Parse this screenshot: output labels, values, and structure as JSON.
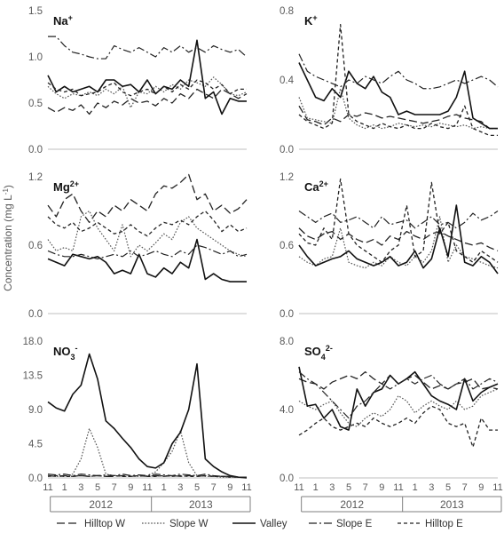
{
  "ylabel": "Concentration (mg L",
  "ylabel_sup": "-1",
  "ylabel_end": ")",
  "month_ticks": [
    "11",
    "1",
    "3",
    "5",
    "7",
    "9",
    "11",
    "1",
    "3",
    "5",
    "7",
    "9",
    "11"
  ],
  "years": [
    "2012",
    "2013"
  ],
  "legend_items": [
    {
      "label": "Hilltop W",
      "dash": "9,4",
      "width": 1.3,
      "color": "#222222"
    },
    {
      "label": "Slope W",
      "dash": "1.6,1.8",
      "width": 1.2,
      "color": "#555555"
    },
    {
      "label": "Valley",
      "dash": "",
      "width": 1.6,
      "color": "#111111"
    },
    {
      "label": "Slope E",
      "dash": "9,3,2,3",
      "width": 1.2,
      "color": "#222222"
    },
    {
      "label": "Hilltop E",
      "dash": "4,3",
      "width": 1.3,
      "color": "#222222"
    }
  ],
  "chart_data": [
    {
      "type": "line",
      "ion_base": "Na",
      "ion_sup": "+",
      "ion_sub": "",
      "x_months": [
        0,
        1,
        2,
        3,
        4,
        5,
        6,
        7,
        8,
        9,
        10,
        11,
        12,
        13,
        14,
        15,
        16,
        17,
        18,
        19,
        20,
        21,
        22,
        23,
        24
      ],
      "ylim": [
        0,
        1.5
      ],
      "yticks": [
        "0.0",
        "0.5",
        "1.0",
        "1.5"
      ],
      "ytick_values": [
        0,
        0.5,
        1.0,
        1.5
      ],
      "series": [
        {
          "values": [
            0.45,
            0.4,
            0.45,
            0.42,
            0.48,
            0.38,
            0.5,
            0.45,
            0.52,
            0.48,
            0.55,
            0.5,
            0.52,
            0.47,
            0.55,
            0.5,
            0.6,
            0.55,
            0.65,
            0.6,
            0.55,
            0.65,
            0.6,
            0.55,
            0.6
          ]
        },
        {
          "values": [
            0.68,
            0.6,
            0.55,
            0.6,
            0.58,
            0.62,
            0.58,
            0.65,
            0.6,
            0.68,
            0.45,
            0.62,
            0.6,
            0.68,
            0.62,
            0.7,
            0.65,
            0.75,
            0.72,
            0.68,
            0.78,
            0.7,
            0.6,
            0.58,
            0.62
          ]
        },
        {
          "values": [
            0.8,
            0.62,
            0.68,
            0.62,
            0.65,
            0.68,
            0.62,
            0.75,
            0.75,
            0.68,
            0.7,
            0.62,
            0.75,
            0.6,
            0.68,
            0.65,
            0.75,
            0.68,
            1.18,
            0.55,
            0.62,
            0.38,
            0.55,
            0.52,
            0.52
          ]
        },
        {
          "values": [
            1.22,
            1.22,
            1.12,
            1.05,
            1.03,
            1.0,
            0.98,
            0.98,
            1.12,
            1.08,
            1.05,
            1.1,
            1.05,
            1.0,
            1.1,
            1.05,
            1.12,
            1.05,
            1.1,
            1.05,
            1.12,
            1.08,
            1.05,
            1.08,
            1.0
          ]
        },
        {
          "values": [
            0.72,
            0.65,
            0.62,
            0.65,
            0.58,
            0.6,
            0.62,
            0.68,
            0.72,
            0.62,
            0.58,
            0.62,
            0.65,
            0.6,
            0.68,
            0.62,
            0.7,
            0.65,
            0.75,
            0.72,
            0.65,
            0.7,
            0.6,
            0.65,
            0.65
          ]
        }
      ]
    },
    {
      "type": "line",
      "ion_base": "K",
      "ion_sup": "+",
      "ion_sub": "",
      "x_months": [
        0,
        1,
        2,
        3,
        4,
        5,
        6,
        7,
        8,
        9,
        10,
        11,
        12,
        13,
        14,
        15,
        16,
        17,
        18,
        19,
        20,
        21,
        22,
        23,
        24
      ],
      "ylim": [
        0,
        0.8
      ],
      "yticks": [
        "0.0",
        "0.4",
        "0.8"
      ],
      "ytick_values": [
        0,
        0.4,
        0.8
      ],
      "series": [
        {
          "values": [
            0.25,
            0.17,
            0.16,
            0.14,
            0.18,
            0.16,
            0.2,
            0.19,
            0.21,
            0.2,
            0.18,
            0.19,
            0.18,
            0.17,
            0.16,
            0.15,
            0.16,
            0.17,
            0.19,
            0.2,
            0.18,
            0.17,
            0.16,
            0.12,
            0.12
          ]
        },
        {
          "values": [
            0.3,
            0.18,
            0.17,
            0.16,
            0.15,
            0.35,
            0.18,
            0.14,
            0.12,
            0.14,
            0.12,
            0.13,
            0.15,
            0.14,
            0.13,
            0.14,
            0.13,
            0.15,
            0.14,
            0.13,
            0.14,
            0.12,
            0.13,
            0.12,
            0.12
          ]
        },
        {
          "values": [
            0.5,
            0.4,
            0.3,
            0.28,
            0.35,
            0.3,
            0.45,
            0.38,
            0.35,
            0.42,
            0.33,
            0.3,
            0.2,
            0.22,
            0.2,
            0.2,
            0.2,
            0.2,
            0.22,
            0.3,
            0.45,
            0.18,
            0.15,
            0.12,
            0.12
          ]
        },
        {
          "values": [
            0.55,
            0.45,
            0.42,
            0.4,
            0.38,
            0.36,
            0.4,
            0.38,
            0.42,
            0.4,
            0.38,
            0.42,
            0.45,
            0.4,
            0.38,
            0.35,
            0.35,
            0.36,
            0.38,
            0.4,
            0.38,
            0.4,
            0.42,
            0.4,
            0.36
          ]
        },
        {
          "values": [
            0.2,
            0.16,
            0.14,
            0.12,
            0.15,
            0.72,
            0.2,
            0.16,
            0.14,
            0.12,
            0.15,
            0.13,
            0.12,
            0.14,
            0.12,
            0.12,
            0.15,
            0.13,
            0.12,
            0.14,
            0.25,
            0.12,
            0.1,
            0.08,
            0.08
          ]
        }
      ]
    },
    {
      "type": "line",
      "ion_base": "Mg",
      "ion_sup": "2+",
      "ion_sub": "",
      "x_months": [
        0,
        1,
        2,
        3,
        4,
        5,
        6,
        7,
        8,
        9,
        10,
        11,
        12,
        13,
        14,
        15,
        16,
        17,
        18,
        19,
        20,
        21,
        22,
        23,
        24
      ],
      "ylim": [
        0,
        1.2
      ],
      "yticks": [
        "0.0",
        "0.6",
        "1.2"
      ],
      "ytick_values": [
        0,
        0.6,
        1.2
      ],
      "series": [
        {
          "values": [
            0.95,
            0.85,
            1.0,
            1.05,
            0.9,
            0.8,
            0.9,
            0.85,
            0.95,
            0.9,
            1.0,
            0.95,
            0.9,
            1.05,
            1.12,
            1.1,
            1.15,
            1.22,
            1.0,
            1.05,
            0.9,
            0.95,
            0.88,
            0.92,
            1.0
          ]
        },
        {
          "values": [
            0.65,
            0.55,
            0.58,
            0.55,
            0.85,
            0.9,
            0.75,
            0.65,
            0.55,
            0.78,
            0.5,
            0.6,
            0.55,
            0.62,
            0.7,
            0.65,
            0.8,
            0.85,
            0.75,
            0.7,
            0.65,
            0.6,
            0.55,
            0.52,
            0.5
          ]
        },
        {
          "values": [
            0.48,
            0.45,
            0.42,
            0.52,
            0.5,
            0.48,
            0.5,
            0.45,
            0.35,
            0.38,
            0.35,
            0.52,
            0.35,
            0.32,
            0.4,
            0.35,
            0.45,
            0.4,
            0.65,
            0.3,
            0.35,
            0.3,
            0.28,
            0.28,
            0.28
          ]
        },
        {
          "values": [
            0.55,
            0.52,
            0.5,
            0.5,
            0.52,
            0.5,
            0.48,
            0.5,
            0.52,
            0.5,
            0.55,
            0.5,
            0.52,
            0.55,
            0.52,
            0.5,
            0.55,
            0.52,
            0.6,
            0.58,
            0.55,
            0.52,
            0.55,
            0.5,
            0.52
          ]
        },
        {
          "values": [
            0.85,
            0.78,
            0.75,
            0.8,
            0.72,
            0.75,
            0.8,
            0.75,
            0.7,
            0.72,
            0.78,
            0.72,
            0.68,
            0.75,
            0.8,
            0.78,
            0.82,
            0.78,
            0.85,
            0.9,
            0.82,
            0.72,
            0.78,
            0.72,
            0.75
          ]
        }
      ]
    },
    {
      "type": "line",
      "ion_base": "Ca",
      "ion_sup": "2+",
      "ion_sub": "",
      "x_months": [
        0,
        1,
        2,
        3,
        4,
        5,
        6,
        7,
        8,
        9,
        10,
        11,
        12,
        13,
        14,
        15,
        16,
        17,
        18,
        19,
        20,
        21,
        22,
        23,
        24
      ],
      "ylim": [
        0,
        1.2
      ],
      "yticks": [
        "0.0",
        "0.6",
        "1.2"
      ],
      "ytick_values": [
        0,
        0.6,
        1.2
      ],
      "series": [
        {
          "values": [
            0.75,
            0.68,
            0.65,
            0.7,
            0.72,
            0.65,
            0.7,
            0.65,
            0.62,
            0.65,
            0.6,
            0.68,
            0.65,
            0.72,
            0.68,
            0.65,
            0.7,
            0.72,
            0.68,
            0.65,
            0.62,
            0.6,
            0.62,
            0.58,
            0.55
          ]
        },
        {
          "values": [
            0.5,
            0.45,
            0.42,
            0.48,
            0.5,
            0.75,
            0.45,
            0.42,
            0.4,
            0.45,
            0.42,
            0.5,
            0.45,
            0.42,
            0.5,
            0.45,
            0.55,
            0.85,
            0.45,
            0.6,
            0.5,
            0.48,
            0.45,
            0.42,
            0.4
          ]
        },
        {
          "values": [
            0.6,
            0.5,
            0.42,
            0.45,
            0.48,
            0.5,
            0.55,
            0.48,
            0.45,
            0.42,
            0.45,
            0.5,
            0.42,
            0.45,
            0.55,
            0.4,
            0.48,
            0.75,
            0.5,
            0.95,
            0.45,
            0.42,
            0.5,
            0.45,
            0.35
          ]
        },
        {
          "values": [
            0.9,
            0.85,
            0.8,
            0.85,
            0.88,
            0.8,
            0.82,
            0.85,
            0.8,
            0.75,
            0.85,
            0.78,
            0.8,
            0.82,
            0.75,
            0.8,
            0.85,
            0.78,
            0.8,
            0.75,
            0.8,
            0.88,
            0.82,
            0.85,
            0.9
          ]
        },
        {
          "values": [
            0.7,
            0.62,
            0.6,
            0.75,
            0.65,
            1.18,
            0.7,
            0.6,
            0.55,
            0.5,
            0.45,
            0.55,
            0.6,
            0.95,
            0.5,
            0.55,
            1.15,
            0.7,
            0.8,
            0.55,
            0.5,
            0.45,
            0.55,
            0.5,
            0.45
          ]
        }
      ]
    },
    {
      "type": "line",
      "ion_base": "NO",
      "ion_sup": "-",
      "ion_sub": "3",
      "x_months": [
        0,
        1,
        2,
        3,
        4,
        5,
        6,
        7,
        8,
        9,
        10,
        11,
        12,
        13,
        14,
        15,
        16,
        17,
        18,
        19,
        20,
        21,
        22,
        23,
        24
      ],
      "ylim": [
        0,
        18
      ],
      "yticks": [
        "0.0",
        "4.5",
        "9.0",
        "13.5",
        "18.0"
      ],
      "ytick_values": [
        0,
        4.5,
        9,
        13.5,
        18
      ],
      "series": [
        {
          "values": [
            0.3,
            0.2,
            0.3,
            0.2,
            0.3,
            0.2,
            0.3,
            0.2,
            0.2,
            0.3,
            0.2,
            0.3,
            0.2,
            0.3,
            0.2,
            0.3,
            0.2,
            0.3,
            0.2,
            0.3,
            0.2,
            0.2,
            0.2,
            0.1,
            0.1
          ]
        },
        {
          "values": [
            0.3,
            0.2,
            0.2,
            0.5,
            2.5,
            6.5,
            4.0,
            0.5,
            0.3,
            0.2,
            0.2,
            0.2,
            0.3,
            0.8,
            2.0,
            3.5,
            6.2,
            2.0,
            0.3,
            0.2,
            0.2,
            0.1,
            0.1,
            0.1,
            0.0
          ]
        },
        {
          "values": [
            10.0,
            9.2,
            8.8,
            11.0,
            12.2,
            16.3,
            13.0,
            7.5,
            6.5,
            5.2,
            4.0,
            2.5,
            1.5,
            1.3,
            2.0,
            4.5,
            6.0,
            9.0,
            15.0,
            2.5,
            1.5,
            0.8,
            0.3,
            0.1,
            0.0
          ]
        },
        {
          "values": [
            0.5,
            0.4,
            0.5,
            0.3,
            0.5,
            0.4,
            0.3,
            0.4,
            0.3,
            0.5,
            0.3,
            0.4,
            0.3,
            0.5,
            0.4,
            0.3,
            0.5,
            0.4,
            0.3,
            0.5,
            0.3,
            0.2,
            0.2,
            0.1,
            0.1
          ]
        },
        {
          "values": [
            0.2,
            0.3,
            0.2,
            0.2,
            0.3,
            0.2,
            0.3,
            0.2,
            0.3,
            0.2,
            0.2,
            0.3,
            0.2,
            0.2,
            0.3,
            0.2,
            0.3,
            0.2,
            0.2,
            0.3,
            0.2,
            0.2,
            0.1,
            0.1,
            0.1
          ]
        }
      ]
    },
    {
      "type": "line",
      "ion_base": "SO",
      "ion_sup": "2-",
      "ion_sub": "4",
      "x_months": [
        0,
        1,
        2,
        3,
        4,
        5,
        6,
        7,
        8,
        9,
        10,
        11,
        12,
        13,
        14,
        15,
        16,
        17,
        18,
        19,
        20,
        21,
        22,
        23,
        24
      ],
      "ylim": [
        0,
        8
      ],
      "yticks": [
        "0.0",
        "4.0",
        "8.0"
      ],
      "ytick_values": [
        0,
        4,
        8
      ],
      "series": [
        {
          "values": [
            5.8,
            5.6,
            5.5,
            5.2,
            5.6,
            5.8,
            6.0,
            5.8,
            6.2,
            5.8,
            5.5,
            6.0,
            5.5,
            5.8,
            6.0,
            5.6,
            5.2,
            5.4,
            5.2,
            5.5,
            5.6,
            5.8,
            5.2,
            5.3,
            5.2
          ]
        },
        {
          "values": [
            4.5,
            4.2,
            4.0,
            4.3,
            4.5,
            3.8,
            3.2,
            3.0,
            3.5,
            3.8,
            3.6,
            4.0,
            4.8,
            4.5,
            3.8,
            4.2,
            4.5,
            4.2,
            4.0,
            4.5,
            4.0,
            4.2,
            4.8,
            5.0,
            5.2
          ]
        },
        {
          "values": [
            6.5,
            4.2,
            4.3,
            3.5,
            4.0,
            3.0,
            2.8,
            5.2,
            4.2,
            5.0,
            5.2,
            6.0,
            5.5,
            5.8,
            6.2,
            5.5,
            4.8,
            4.5,
            4.3,
            4.0,
            5.8,
            4.5,
            5.0,
            5.3,
            5.5
          ]
        },
        {
          "values": [
            6.2,
            5.8,
            5.5,
            5.0,
            4.5,
            4.0,
            3.5,
            4.2,
            4.5,
            5.0,
            5.5,
            5.2,
            5.5,
            5.8,
            5.5,
            5.8,
            6.0,
            5.5,
            5.2,
            5.5,
            5.8,
            5.2,
            5.5,
            5.8,
            5.6
          ]
        },
        {
          "values": [
            2.5,
            2.8,
            3.2,
            3.5,
            3.0,
            2.8,
            3.0,
            3.2,
            3.0,
            3.5,
            3.2,
            3.0,
            3.2,
            3.5,
            3.2,
            3.8,
            4.2,
            4.0,
            3.2,
            3.0,
            3.2,
            1.8,
            3.5,
            2.8,
            2.8
          ]
        }
      ]
    }
  ]
}
